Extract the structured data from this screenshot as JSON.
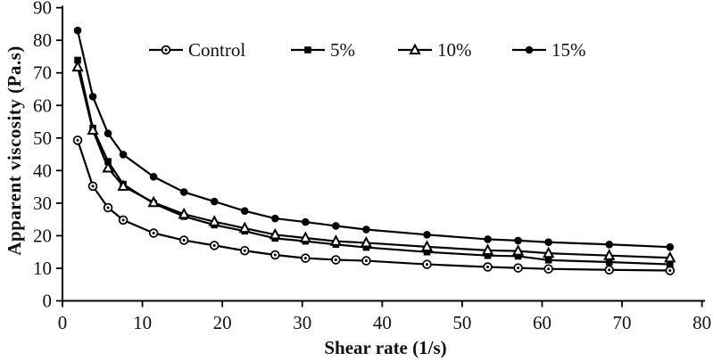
{
  "chart_data": {
    "type": "line",
    "title": "",
    "xlabel": "Shear rate (1/s)",
    "ylabel": "Apparent viscosity (Pa.s)",
    "xlim": [
      0,
      80
    ],
    "ylim": [
      0,
      90
    ],
    "x_ticks": [
      0,
      10,
      20,
      30,
      40,
      50,
      60,
      70,
      80
    ],
    "y_ticks": [
      0,
      10,
      20,
      30,
      40,
      50,
      60,
      70,
      80,
      90
    ],
    "grid": false,
    "legend_position": "top-center-horizontal",
    "line_color": "#000000",
    "background_color": "#ffffff",
    "x": [
      1.9,
      3.8,
      5.7,
      7.6,
      11.4,
      15.2,
      19,
      22.8,
      26.6,
      30.4,
      34.2,
      38,
      45.6,
      53.2,
      57,
      60.8,
      68.4,
      76
    ],
    "series": [
      {
        "name": "Control",
        "marker": "circle-dot-icon",
        "values": [
          49.3,
          35.2,
          28.6,
          24.8,
          20.8,
          18.6,
          17.0,
          15.4,
          14.1,
          13.1,
          12.6,
          12.3,
          11.2,
          10.4,
          10.1,
          9.8,
          9.5,
          9.3
        ]
      },
      {
        "name": "5%",
        "marker": "filled-square-icon",
        "values": [
          73.9,
          53.0,
          42.8,
          35.8,
          29.9,
          25.9,
          23.3,
          21.4,
          19.2,
          18.3,
          17.3,
          16.4,
          15.0,
          13.9,
          13.7,
          12.5,
          11.9,
          11.2
        ]
      },
      {
        "name": "10%",
        "marker": "open-triangle-icon",
        "values": [
          71.8,
          52.4,
          40.8,
          35.2,
          30.2,
          26.6,
          24.3,
          22.3,
          20.3,
          19.3,
          18.3,
          17.8,
          16.6,
          15.5,
          15.3,
          14.6,
          13.9,
          13.2
        ]
      },
      {
        "name": "15%",
        "marker": "filled-circle-icon",
        "values": [
          83.0,
          62.7,
          51.4,
          44.9,
          38.1,
          33.4,
          30.5,
          27.6,
          25.3,
          24.2,
          23.0,
          21.9,
          20.3,
          18.9,
          18.5,
          18.0,
          17.3,
          16.5
        ]
      }
    ]
  }
}
